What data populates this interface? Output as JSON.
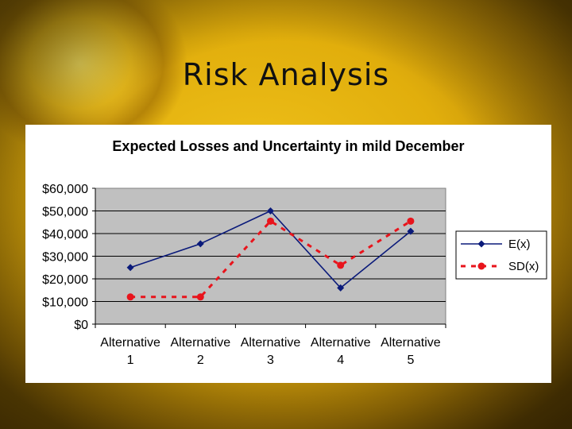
{
  "slide_title": "Risk Analysis",
  "chart_data": {
    "type": "line",
    "title": "Expected Losses and Uncertainty in mild December",
    "categories": [
      [
        "Alternative",
        "1"
      ],
      [
        "Alternative",
        "2"
      ],
      [
        "Alternative",
        "3"
      ],
      [
        "Alternative",
        "4"
      ],
      [
        "Alternative",
        "5"
      ]
    ],
    "ylim": [
      0,
      60000
    ],
    "yticks": [
      0,
      10000,
      20000,
      30000,
      40000,
      50000,
      60000
    ],
    "ytick_labels": [
      "$0",
      "$10,000",
      "$20,000",
      "$30,000",
      "$40,000",
      "$50,000",
      "$60,000"
    ],
    "grid": true,
    "legend_position": "right",
    "series": [
      {
        "name": "E(x)",
        "values": [
          25000,
          35500,
          50000,
          16000,
          41000
        ],
        "color": "#0a1a7a",
        "marker": "diamond",
        "line_style": "solid"
      },
      {
        "name": "SD(x)",
        "values": [
          12000,
          12000,
          45500,
          26000,
          45500
        ],
        "color": "#e8141c",
        "marker": "circle",
        "line_style": "dashed"
      }
    ]
  },
  "colors": {
    "plot_background": "#c0c0c0",
    "gridline": "#000000"
  }
}
